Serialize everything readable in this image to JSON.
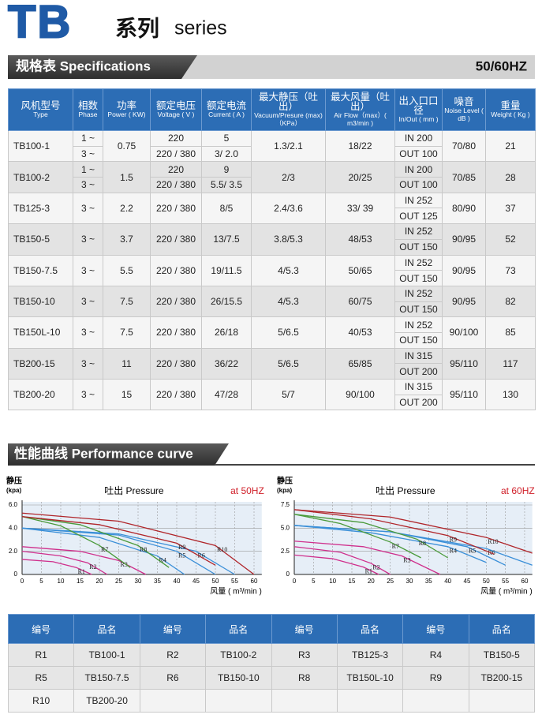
{
  "header": {
    "logo": "TB",
    "title_cn": "系列",
    "title_en": "series"
  },
  "spec": {
    "title": "规格表 Specifications",
    "freq": "50/60HZ",
    "columns": [
      {
        "cn": "风机型号",
        "en": "Type"
      },
      {
        "cn": "相数",
        "en": "Phase"
      },
      {
        "cn": "功率",
        "en": "Power ( KW)"
      },
      {
        "cn": "额定电压",
        "en": "Voltage ( V )"
      },
      {
        "cn": "额定电流",
        "en": "Current ( A )"
      },
      {
        "cn": "最大静压（吐出）",
        "en": "Vacuum/Presure (max)（KPa）"
      },
      {
        "cn": "最大风量（吐出）",
        "en": "Air Flow（max）( m3/min )"
      },
      {
        "cn": "出入口口径",
        "en": "In/Out ( mm )"
      },
      {
        "cn": "噪音",
        "en": "Noise Level ( dB )"
      },
      {
        "cn": "重量",
        "en": "Weight ( Kg )"
      }
    ],
    "rows": [
      {
        "model": "TB100-1",
        "phase": [
          "1 ~",
          "3 ~"
        ],
        "power": "0.75",
        "voltage": [
          "220",
          "220 / 380"
        ],
        "current": [
          "5",
          "3/ 2.0"
        ],
        "vacuum": "1.3/2.1",
        "flow": "18/22",
        "io": [
          "IN 200",
          "OUT 100"
        ],
        "noise": "70/80",
        "weight": "21"
      },
      {
        "model": "TB100-2",
        "phase": [
          "1 ~",
          "3 ~"
        ],
        "power": "1.5",
        "voltage": [
          "220",
          "220 / 380"
        ],
        "current": [
          "9",
          "5.5/ 3.5"
        ],
        "vacuum": "2/3",
        "flow": "20/25",
        "io": [
          "IN 200",
          "OUT 100"
        ],
        "noise": "70/85",
        "weight": "28"
      },
      {
        "model": "TB125-3",
        "phase": [
          "3 ~"
        ],
        "power": "2.2",
        "voltage": [
          "220 / 380"
        ],
        "current": [
          "8/5"
        ],
        "vacuum": "2.4/3.6",
        "flow": "33/ 39",
        "io": [
          "IN 252",
          "OUT 125"
        ],
        "noise": "80/90",
        "weight": "37"
      },
      {
        "model": "TB150-5",
        "phase": [
          "3 ~"
        ],
        "power": "3.7",
        "voltage": [
          "220 / 380"
        ],
        "current": [
          "13/7.5"
        ],
        "vacuum": "3.8/5.3",
        "flow": "48/53",
        "io": [
          "IN 252",
          "OUT 150"
        ],
        "noise": "90/95",
        "weight": "52"
      },
      {
        "model": "TB150-7.5",
        "phase": [
          "3 ~"
        ],
        "power": "5.5",
        "voltage": [
          "220 / 380"
        ],
        "current": [
          "19/11.5"
        ],
        "vacuum": "4/5.3",
        "flow": "50/65",
        "io": [
          "IN 252",
          "OUT 150"
        ],
        "noise": "90/95",
        "weight": "73"
      },
      {
        "model": "TB150-10",
        "phase": [
          "3 ~"
        ],
        "power": "7.5",
        "voltage": [
          "220 / 380"
        ],
        "current": [
          "26/15.5"
        ],
        "vacuum": "4/5.3",
        "flow": "60/75",
        "io": [
          "IN 252",
          "OUT 150"
        ],
        "noise": "90/95",
        "weight": "82"
      },
      {
        "model": "TB150L-10",
        "phase": [
          "3 ~"
        ],
        "power": "7.5",
        "voltage": [
          "220 / 380"
        ],
        "current": [
          "26/18"
        ],
        "vacuum": "5/6.5",
        "flow": "40/53",
        "io": [
          "IN 252",
          "OUT 150"
        ],
        "noise": "90/100",
        "weight": "85"
      },
      {
        "model": "TB200-15",
        "phase": [
          "3 ~"
        ],
        "power": "11",
        "voltage": [
          "220 / 380"
        ],
        "current": [
          "36/22"
        ],
        "vacuum": "5/6.5",
        "flow": "65/85",
        "io": [
          "IN 315",
          "OUT 200"
        ],
        "noise": "95/110",
        "weight": "117"
      },
      {
        "model": "TB200-20",
        "phase": [
          "3 ~"
        ],
        "power": "15",
        "voltage": [
          "220 / 380"
        ],
        "current": [
          "47/28"
        ],
        "vacuum": "5/7",
        "flow": "90/100",
        "io": [
          "IN 315",
          "OUT 200"
        ],
        "noise": "95/110",
        "weight": "130"
      }
    ]
  },
  "perf": {
    "title": "性能曲线 Performance curve"
  },
  "chart_data": [
    {
      "type": "line",
      "title": "吐出 Pressure",
      "freq": "at 50HZ",
      "ylabel": "静压",
      "yunit": "(kpa)",
      "xlabel": "风量 ( m³/min )",
      "xlim": [
        0,
        62
      ],
      "xticks": [
        0,
        5,
        10,
        15,
        20,
        25,
        30,
        35,
        40,
        45,
        50,
        55,
        60
      ],
      "ylim": [
        0,
        6
      ],
      "yticks": [
        0,
        {
          "value": 2,
          "label": "2.0"
        },
        {
          "value": 4,
          "label": "4.0"
        },
        {
          "value": 6,
          "label": "6.0"
        }
      ],
      "grid": true,
      "series": [
        {
          "name": "R1",
          "color": "#cf2f8c",
          "x": [
            0,
            8,
            14,
            18
          ],
          "values": [
            1.3,
            1.1,
            0.6,
            0
          ]
        },
        {
          "name": "R2",
          "color": "#cf2f8c",
          "x": [
            0,
            10,
            17,
            22
          ],
          "values": [
            2.0,
            1.6,
            1.0,
            0
          ]
        },
        {
          "name": "R3",
          "color": "#cf2f8c",
          "x": [
            0,
            15,
            25,
            32
          ],
          "values": [
            2.4,
            2.0,
            1.2,
            0
          ]
        },
        {
          "name": "R4",
          "color": "#3a8fd8",
          "x": [
            0,
            20,
            35,
            42
          ],
          "values": [
            4.0,
            3.2,
            1.6,
            0
          ]
        },
        {
          "name": "R5",
          "color": "#3a8fd8",
          "x": [
            0,
            25,
            40,
            50
          ],
          "values": [
            4.0,
            3.4,
            2.0,
            0
          ]
        },
        {
          "name": "R6",
          "color": "#3a8fd8",
          "x": [
            0,
            25,
            45,
            55
          ],
          "values": [
            4.0,
            3.5,
            2.0,
            0
          ]
        },
        {
          "name": "R7",
          "color": "#4a9a3a",
          "x": [
            0,
            10,
            20,
            28
          ],
          "values": [
            5.0,
            4.2,
            2.5,
            0.6
          ]
        },
        {
          "name": "R8",
          "color": "#4a9a3a",
          "x": [
            0,
            15,
            30,
            38
          ],
          "values": [
            5.0,
            4.3,
            2.5,
            0.6
          ]
        },
        {
          "name": "R9",
          "color": "#b0252a",
          "x": [
            0,
            20,
            40,
            50
          ],
          "values": [
            5.0,
            4.3,
            2.7,
            0.8
          ]
        },
        {
          "name": "R10",
          "color": "#b0252a",
          "x": [
            0,
            25,
            50,
            60
          ],
          "values": [
            5.3,
            4.6,
            2.5,
            0
          ]
        }
      ]
    },
    {
      "type": "line",
      "title": "吐出 Pressure",
      "freq": "at 60HZ",
      "ylabel": "静压",
      "yunit": "(kpa)",
      "xlabel": "风量 ( m³/min )",
      "xlim": [
        0,
        62
      ],
      "xticks": [
        0,
        5,
        10,
        15,
        20,
        25,
        30,
        35,
        40,
        45,
        50,
        55,
        60
      ],
      "ylim": [
        0,
        7.5
      ],
      "yticks": [
        0,
        2.5,
        {
          "value": 5,
          "label": "5.0"
        },
        7.5
      ],
      "grid": true,
      "series": [
        {
          "name": "R1",
          "color": "#cf2f8c",
          "x": [
            0,
            10,
            18,
            22
          ],
          "values": [
            2.1,
            1.7,
            0.8,
            0
          ]
        },
        {
          "name": "R2",
          "color": "#cf2f8c",
          "x": [
            0,
            12,
            20,
            25
          ],
          "values": [
            3.0,
            2.4,
            1.2,
            0
          ]
        },
        {
          "name": "R3",
          "color": "#cf2f8c",
          "x": [
            0,
            18,
            28,
            38
          ],
          "values": [
            3.6,
            3.0,
            2.0,
            0
          ]
        },
        {
          "name": "R4",
          "color": "#3a8fd8",
          "x": [
            0,
            20,
            40,
            50
          ],
          "values": [
            5.3,
            4.5,
            3.0,
            1.3
          ]
        },
        {
          "name": "R5",
          "color": "#3a8fd8",
          "x": [
            0,
            25,
            45,
            55
          ],
          "values": [
            5.3,
            4.6,
            3.0,
            1.0
          ]
        },
        {
          "name": "R6",
          "color": "#3a8fd8",
          "x": [
            0,
            25,
            50,
            62
          ],
          "values": [
            5.3,
            4.6,
            2.8,
            1.0
          ]
        },
        {
          "name": "R7",
          "color": "#4a9a3a",
          "x": [
            0,
            12,
            25,
            33
          ],
          "values": [
            6.5,
            5.5,
            3.5,
            1.8
          ]
        },
        {
          "name": "R8",
          "color": "#4a9a3a",
          "x": [
            0,
            18,
            32,
            40
          ],
          "values": [
            6.5,
            5.6,
            3.8,
            1.8
          ]
        },
        {
          "name": "R9",
          "color": "#b0252a",
          "x": [
            0,
            20,
            40,
            52
          ],
          "values": [
            7.0,
            6.0,
            4.2,
            2.2
          ]
        },
        {
          "name": "R10",
          "color": "#b0252a",
          "x": [
            0,
            25,
            50,
            62
          ],
          "values": [
            7.0,
            6.2,
            4.0,
            2.3
          ]
        }
      ]
    }
  ],
  "legend_table": {
    "header": [
      "编号",
      "品名",
      "编号",
      "品名",
      "编号",
      "品名",
      "编号",
      "品名"
    ],
    "rows": [
      [
        "R1",
        "TB100-1",
        "R2",
        "TB100-2",
        "R3",
        "TB125-3",
        "R4",
        "TB150-5"
      ],
      [
        "R5",
        "TB150-7.5",
        "R6",
        "TB150-10",
        "R8",
        "TB150L-10",
        "R9",
        "TB200-15"
      ],
      [
        "R10",
        "TB200-20",
        null,
        null,
        null,
        null,
        null,
        null
      ]
    ]
  }
}
